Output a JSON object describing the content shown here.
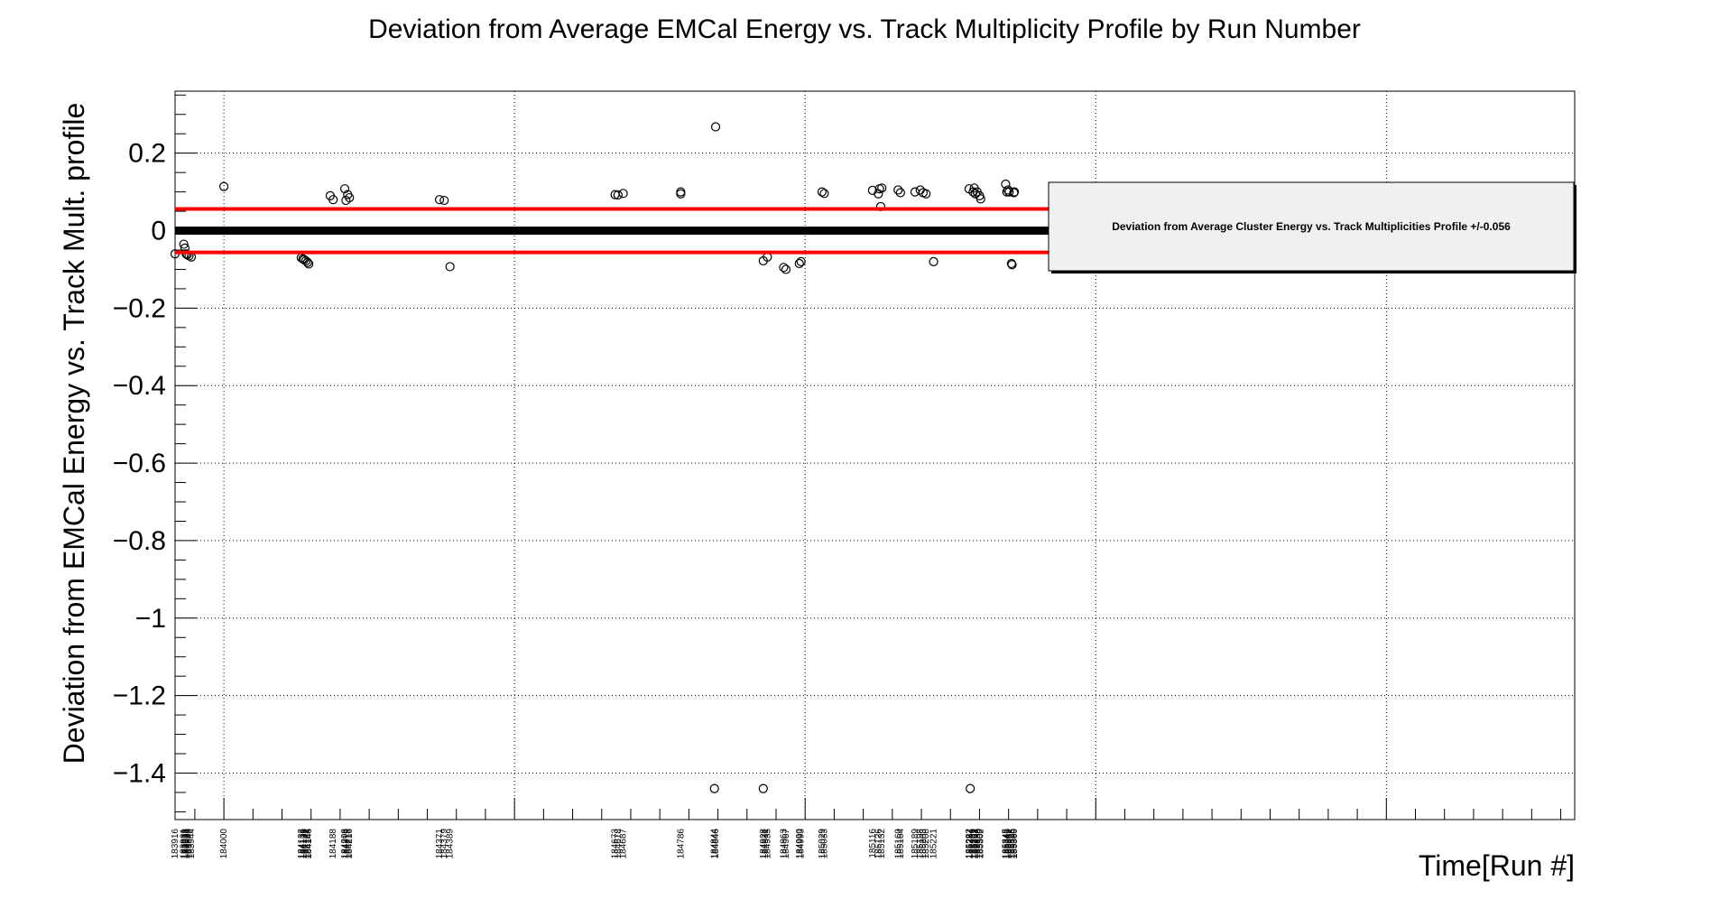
{
  "chart_data": {
    "type": "scatter",
    "title": "Deviation from Average EMCal Energy vs. Track Multiplicity Profile by Run Number",
    "xlabel": "Time[Run #]",
    "ylabel": "Deviation from EMCal Energy vs. Track Mult. profile",
    "ylim": [
      -1.52,
      0.36
    ],
    "yticks": [
      0.2,
      0,
      -0.2,
      -0.4,
      -0.6,
      -0.8,
      -1,
      -1.2,
      -1.4
    ],
    "ytick_labels": [
      "0.2",
      "0",
      "−0.2",
      "−0.4",
      "−0.6",
      "−0.8",
      "−1",
      "−1.2",
      "−1.4"
    ],
    "xlim": [
      183916,
      186324
    ],
    "x_gridlines": [
      184000,
      184500,
      185000,
      185500,
      186000
    ],
    "grid": true,
    "band": 0.056,
    "band_color": "#ff0000",
    "legend": {
      "text": "Deviation from Average Cluster Energy vs. Track Multiplicities Profile +/-0.056",
      "position": "top-right"
    },
    "xtick_labels": [
      {
        "x": 183916,
        "label": "183916"
      },
      {
        "x": 183931,
        "label": "183931"
      },
      {
        "x": 183933,
        "label": "183933"
      },
      {
        "x": 183935,
        "label": "183935"
      },
      {
        "x": 183937,
        "label": "183937"
      },
      {
        "x": 183940,
        "label": "183940"
      },
      {
        "x": 183944,
        "label": "183944"
      },
      {
        "x": 184000,
        "label": "184000"
      },
      {
        "x": 184133,
        "label": "184133"
      },
      {
        "x": 184136,
        "label": "184136"
      },
      {
        "x": 184138,
        "label": "184138"
      },
      {
        "x": 184141,
        "label": "184141"
      },
      {
        "x": 184144,
        "label": "184144"
      },
      {
        "x": 184146,
        "label": "184146"
      },
      {
        "x": 184188,
        "label": "184188"
      },
      {
        "x": 184208,
        "label": "184208"
      },
      {
        "x": 184210,
        "label": "184210"
      },
      {
        "x": 184213,
        "label": "184213"
      },
      {
        "x": 184216,
        "label": "184216"
      },
      {
        "x": 184371,
        "label": "184371"
      },
      {
        "x": 184379,
        "label": "184379"
      },
      {
        "x": 184389,
        "label": "184389"
      },
      {
        "x": 184673,
        "label": "184673"
      },
      {
        "x": 184678,
        "label": "184678"
      },
      {
        "x": 184687,
        "label": "184687"
      },
      {
        "x": 184786,
        "label": "184786"
      },
      {
        "x": 184844,
        "label": "184844"
      },
      {
        "x": 184846,
        "label": "184846"
      },
      {
        "x": 184928,
        "label": "184928"
      },
      {
        "x": 184931,
        "label": "184931"
      },
      {
        "x": 184935,
        "label": "184935"
      },
      {
        "x": 184963,
        "label": "184963"
      },
      {
        "x": 184967,
        "label": "184967"
      },
      {
        "x": 184990,
        "label": "184990"
      },
      {
        "x": 184993,
        "label": "184993"
      },
      {
        "x": 185029,
        "label": "185029"
      },
      {
        "x": 185033,
        "label": "185033"
      },
      {
        "x": 185116,
        "label": "185116"
      },
      {
        "x": 185126,
        "label": "185126"
      },
      {
        "x": 185132,
        "label": "185132"
      },
      {
        "x": 185160,
        "label": "185160"
      },
      {
        "x": 185164,
        "label": "185164"
      },
      {
        "x": 185189,
        "label": "185189"
      },
      {
        "x": 185198,
        "label": "185198"
      },
      {
        "x": 185203,
        "label": "185203"
      },
      {
        "x": 185208,
        "label": "185208"
      },
      {
        "x": 185221,
        "label": "185221"
      },
      {
        "x": 185282,
        "label": "185282"
      },
      {
        "x": 185284,
        "label": "185284"
      },
      {
        "x": 185289,
        "label": "185289"
      },
      {
        "x": 185291,
        "label": "185291"
      },
      {
        "x": 185293,
        "label": "185293"
      },
      {
        "x": 185296,
        "label": "185296"
      },
      {
        "x": 185300,
        "label": "185300"
      },
      {
        "x": 185302,
        "label": "185302"
      },
      {
        "x": 185345,
        "label": "185345"
      },
      {
        "x": 185347,
        "label": "185347"
      },
      {
        "x": 185349,
        "label": "185349"
      },
      {
        "x": 185351,
        "label": "185351"
      },
      {
        "x": 185355,
        "label": "185355"
      },
      {
        "x": 185356,
        "label": "185356"
      },
      {
        "x": 185359,
        "label": "185359"
      },
      {
        "x": 185360,
        "label": "185360"
      }
    ],
    "points": [
      {
        "x": 183916,
        "y": -0.06
      },
      {
        "x": 183931,
        "y": -0.035
      },
      {
        "x": 183933,
        "y": -0.045
      },
      {
        "x": 183935,
        "y": -0.06
      },
      {
        "x": 183937,
        "y": -0.062
      },
      {
        "x": 183940,
        "y": -0.065
      },
      {
        "x": 183944,
        "y": -0.068
      },
      {
        "x": 184000,
        "y": 0.114
      },
      {
        "x": 184133,
        "y": -0.07
      },
      {
        "x": 184136,
        "y": -0.073
      },
      {
        "x": 184138,
        "y": -0.075
      },
      {
        "x": 184141,
        "y": -0.078
      },
      {
        "x": 184144,
        "y": -0.082
      },
      {
        "x": 184146,
        "y": -0.086
      },
      {
        "x": 184183,
        "y": 0.09
      },
      {
        "x": 184188,
        "y": 0.08
      },
      {
        "x": 184208,
        "y": 0.108
      },
      {
        "x": 184210,
        "y": 0.078
      },
      {
        "x": 184213,
        "y": 0.093
      },
      {
        "x": 184216,
        "y": 0.085
      },
      {
        "x": 184371,
        "y": 0.08
      },
      {
        "x": 184379,
        "y": 0.078
      },
      {
        "x": 184389,
        "y": -0.093
      },
      {
        "x": 184673,
        "y": 0.093
      },
      {
        "x": 184678,
        "y": 0.092
      },
      {
        "x": 184687,
        "y": 0.096
      },
      {
        "x": 184786,
        "y": 0.1
      },
      {
        "x": 184786,
        "y": 0.095
      },
      {
        "x": 184844,
        "y": -1.44
      },
      {
        "x": 184846,
        "y": 0.268
      },
      {
        "x": 184928,
        "y": -1.44
      },
      {
        "x": 184928,
        "y": -0.078
      },
      {
        "x": 184935,
        "y": -0.068
      },
      {
        "x": 184963,
        "y": -0.095
      },
      {
        "x": 184967,
        "y": -0.1
      },
      {
        "x": 184990,
        "y": -0.085
      },
      {
        "x": 184993,
        "y": -0.08
      },
      {
        "x": 185029,
        "y": 0.1
      },
      {
        "x": 185033,
        "y": 0.096
      },
      {
        "x": 185116,
        "y": 0.104
      },
      {
        "x": 185126,
        "y": 0.095
      },
      {
        "x": 185128,
        "y": 0.108
      },
      {
        "x": 185130,
        "y": 0.062
      },
      {
        "x": 185132,
        "y": 0.11
      },
      {
        "x": 185160,
        "y": 0.105
      },
      {
        "x": 185164,
        "y": 0.098
      },
      {
        "x": 185189,
        "y": 0.1
      },
      {
        "x": 185198,
        "y": 0.105
      },
      {
        "x": 185203,
        "y": 0.098
      },
      {
        "x": 185208,
        "y": 0.095
      },
      {
        "x": 185221,
        "y": -0.08
      },
      {
        "x": 185282,
        "y": 0.108
      },
      {
        "x": 185284,
        "y": -1.44
      },
      {
        "x": 185289,
        "y": 0.1
      },
      {
        "x": 185291,
        "y": 0.11
      },
      {
        "x": 185293,
        "y": 0.095
      },
      {
        "x": 185296,
        "y": 0.1
      },
      {
        "x": 185300,
        "y": 0.09
      },
      {
        "x": 185302,
        "y": 0.082
      },
      {
        "x": 185345,
        "y": 0.12
      },
      {
        "x": 185347,
        "y": 0.1
      },
      {
        "x": 185349,
        "y": 0.105
      },
      {
        "x": 185351,
        "y": 0.1
      },
      {
        "x": 185355,
        "y": -0.085
      },
      {
        "x": 185356,
        "y": -0.088
      },
      {
        "x": 185359,
        "y": 0.098
      },
      {
        "x": 185360,
        "y": 0.1
      }
    ]
  }
}
